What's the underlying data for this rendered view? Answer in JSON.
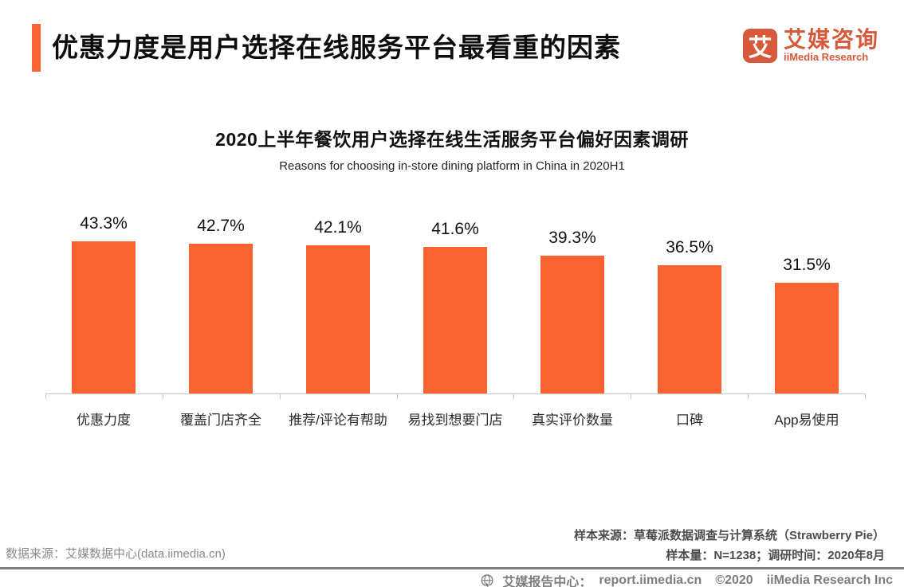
{
  "header": {
    "title": "优惠力度是用户选择在线服务平台最看重的因素",
    "accent_color": "#F96332"
  },
  "logo": {
    "badge_char": "艾",
    "name_cn": "艾媒咨询",
    "name_en": "iiMedia Research",
    "color": "#D6593A"
  },
  "chart_data": {
    "type": "bar",
    "title": "2020上半年餐饮用户选择在线生活服务平台偏好因素调研",
    "subtitle": "Reasons for choosing in-store dining platform in China in 2020H1",
    "categories": [
      "优惠力度",
      "覆盖门店齐全",
      "推荐/评论有帮助",
      "易找到想要门店",
      "真实评价数量",
      "口碑",
      "App易使用"
    ],
    "values": [
      43.3,
      42.7,
      42.1,
      41.6,
      39.3,
      36.5,
      31.5
    ],
    "data_labels": [
      "43.3%",
      "42.7%",
      "42.1%",
      "41.6%",
      "39.3%",
      "36.5%",
      "31.5%"
    ],
    "unit": "%",
    "ylim": [
      0,
      45
    ],
    "grid": false,
    "legend": false,
    "bar_color": "#F96332",
    "axis_color": "#c9c9c9"
  },
  "footer": {
    "source_left": "数据来源：艾媒数据中心(data.iimedia.cn)",
    "sample_source": "样本来源：草莓派数据调查与计算系统（Strawberry Pie）",
    "sample_info": "样本量：N=1238；调研时间：2020年8月"
  },
  "bottom_bar": {
    "report_center_label": "艾媒报告中心：",
    "report_url": "report.iimedia.cn",
    "copyright": "©2020",
    "company": "iiMedia Research Inc"
  }
}
